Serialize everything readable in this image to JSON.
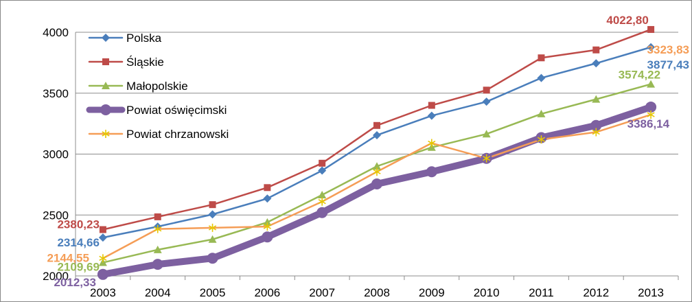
{
  "chart_data": {
    "type": "line",
    "title": "",
    "xlabel": "",
    "ylabel": "",
    "x": [
      "2003",
      "2004",
      "2005",
      "2006",
      "2007",
      "2008",
      "2009",
      "2010",
      "2011",
      "2012",
      "2013"
    ],
    "ylim": [
      2000,
      4000
    ],
    "yticks": [
      2000,
      2500,
      3000,
      3500,
      4000
    ],
    "grid": "horizontal",
    "legend_placement": "top-left",
    "series": [
      {
        "name": "Polska",
        "color": "#4a7ebb",
        "marker": "diamond",
        "values": [
          2314.66,
          2405,
          2505,
          2635,
          2865,
          3155,
          3315,
          3430,
          3625,
          3745,
          3877.43
        ]
      },
      {
        "name": "Śląskie",
        "color": "#be4b48",
        "marker": "square",
        "values": [
          2380.23,
          2485,
          2585,
          2725,
          2925,
          3235,
          3400,
          3525,
          3790,
          3855,
          4022.8
        ]
      },
      {
        "name": "Małopolskie",
        "color": "#98b954",
        "marker": "triangle",
        "values": [
          2109.69,
          2215,
          2300,
          2440,
          2665,
          2900,
          3055,
          3165,
          3330,
          3450,
          3574.22
        ]
      },
      {
        "name": "Powiat oświęcimski",
        "color": "#7d60a0",
        "marker": "circle",
        "thick": true,
        "values": [
          2012.33,
          2095,
          2145,
          2320,
          2520,
          2755,
          2855,
          2965,
          3135,
          3235,
          3386.14
        ]
      },
      {
        "name": "Powiat chrzanowski",
        "color": "#f59d56",
        "marker": "asterisk",
        "values": [
          2144.55,
          2385,
          2395,
          2405,
          2610,
          2855,
          3090,
          2965,
          3120,
          3180,
          3323.83
        ]
      }
    ],
    "data_labels": [
      {
        "series": 1,
        "index": 0,
        "text": "2380,23",
        "color": "#be4b48"
      },
      {
        "series": 0,
        "index": 0,
        "text": "2314,66",
        "color": "#4a7ebb"
      },
      {
        "series": 4,
        "index": 0,
        "text": "2144,55",
        "color": "#f59d56"
      },
      {
        "series": 2,
        "index": 0,
        "text": "2109,69",
        "color": "#98b954"
      },
      {
        "series": 3,
        "index": 0,
        "text": "2012,33",
        "color": "#7d60a0"
      },
      {
        "series": 1,
        "index": 10,
        "text": "4022,80",
        "color": "#be4b48"
      },
      {
        "series": 0,
        "index": 10,
        "text": "3877,43",
        "color": "#4a7ebb"
      },
      {
        "series": 2,
        "index": 10,
        "text": "3574,22",
        "color": "#98b954"
      },
      {
        "series": 3,
        "index": 10,
        "text": "3386,14",
        "color": "#7d60a0"
      },
      {
        "series": 4,
        "index": 10,
        "text": "3323,83",
        "color": "#f59d56"
      }
    ]
  }
}
